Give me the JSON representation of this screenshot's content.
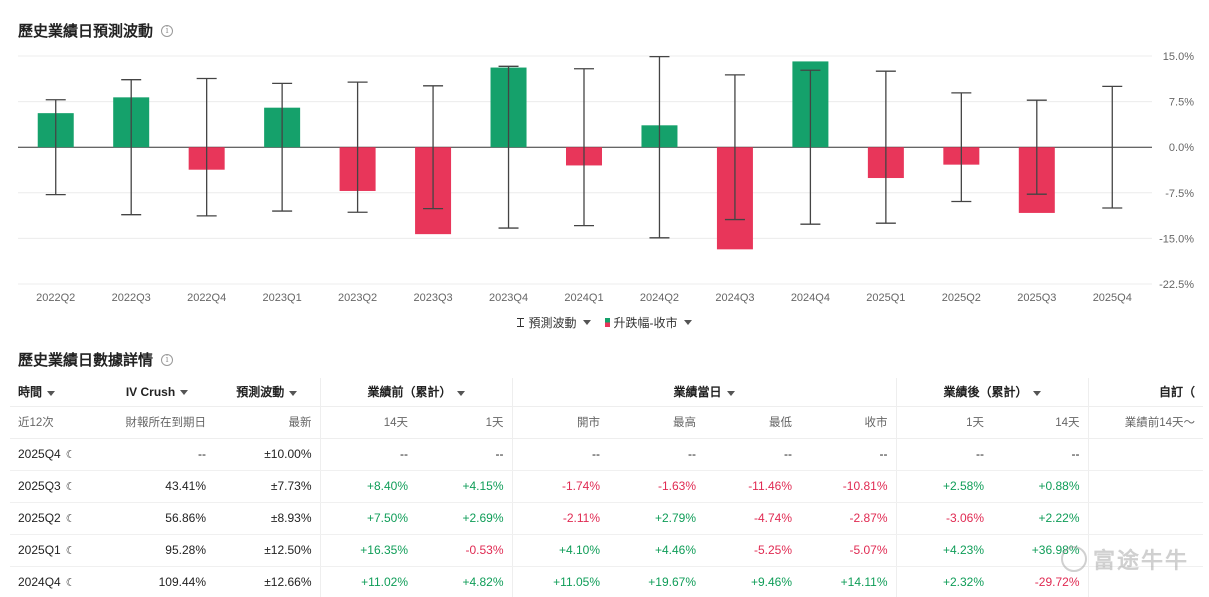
{
  "section1": {
    "title": "歷史業績日預測波動"
  },
  "section2": {
    "title": "歷史業績日數據詳情"
  },
  "info_icon_glyph": "i",
  "legend": {
    "item1": "預測波動",
    "item2": "升跌幅-收市"
  },
  "colors": {
    "up": "#15a16b",
    "down": "#e8365a",
    "error_bar": "#444444",
    "grid": "#ececec"
  },
  "chart_data": {
    "type": "bar",
    "title": "",
    "categories": [
      "2022Q2",
      "2022Q3",
      "2022Q4",
      "2023Q1",
      "2023Q2",
      "2023Q3",
      "2023Q4",
      "2024Q1",
      "2024Q2",
      "2024Q3",
      "2024Q4",
      "2025Q1",
      "2025Q2",
      "2025Q3",
      "2025Q4"
    ],
    "series": [
      {
        "name": "升跌幅-收市",
        "values": [
          5.6,
          8.2,
          -3.7,
          6.5,
          -7.2,
          -14.3,
          13.1,
          -3.0,
          3.6,
          -16.8,
          14.11,
          -5.07,
          -2.87,
          -10.81,
          null
        ]
      },
      {
        "name": "預測波動",
        "type": "error_bar",
        "values": [
          7.8,
          11.1,
          11.3,
          10.5,
          10.7,
          10.1,
          13.3,
          12.9,
          14.9,
          11.9,
          12.66,
          12.5,
          8.93,
          7.73,
          10.0
        ]
      }
    ],
    "y_ticks": [
      "15.0%",
      "7.5%",
      "0.0%",
      "-7.5%",
      "-15.0%",
      "-22.5%"
    ],
    "ylim": [
      -22.5,
      15.0
    ],
    "grid": true,
    "axis_position": "right"
  },
  "table": {
    "header_row1": [
      {
        "text": "時間",
        "caret": true
      },
      {
        "text": "IV Crush",
        "caret": true
      },
      {
        "text": "預測波動",
        "caret": true
      },
      {
        "text": "業績前（累計）",
        "caret": true
      },
      {
        "text": "業績當日",
        "caret": true
      },
      {
        "text": "業績後（累計）",
        "caret": true
      },
      {
        "text": "自訂（",
        "caret": false
      }
    ],
    "header_row2": [
      "近12次",
      "財報所在到期日",
      "最新",
      "14天",
      "1天",
      "開市",
      "最高",
      "最低",
      "收市",
      "1天",
      "14天",
      "業績前14天～"
    ],
    "rows": [
      {
        "period": "2025Q4",
        "cells": [
          "--",
          "±10.00%",
          "--",
          "--",
          "--",
          "--",
          "--",
          "--",
          "--",
          "--",
          ""
        ]
      },
      {
        "period": "2025Q3",
        "cells": [
          "43.41%",
          "±7.73%",
          "+8.40%",
          "+4.15%",
          "-1.74%",
          "-1.63%",
          "-11.46%",
          "-10.81%",
          "+2.58%",
          "+0.88%",
          ""
        ]
      },
      {
        "period": "2025Q2",
        "cells": [
          "56.86%",
          "±8.93%",
          "+7.50%",
          "+2.69%",
          "-2.11%",
          "+2.79%",
          "-4.74%",
          "-2.87%",
          "-3.06%",
          "+2.22%",
          ""
        ]
      },
      {
        "period": "2025Q1",
        "cells": [
          "95.28%",
          "±12.50%",
          "+16.35%",
          "-0.53%",
          "+4.10%",
          "+4.46%",
          "-5.25%",
          "-5.07%",
          "+4.23%",
          "+36.98%",
          ""
        ]
      },
      {
        "period": "2024Q4",
        "cells": [
          "109.44%",
          "±12.66%",
          "+11.02%",
          "+4.82%",
          "+11.05%",
          "+19.67%",
          "+9.46%",
          "+14.11%",
          "+2.32%",
          "-29.72%",
          ""
        ]
      }
    ]
  },
  "watermark": {
    "text": "富途牛牛"
  }
}
